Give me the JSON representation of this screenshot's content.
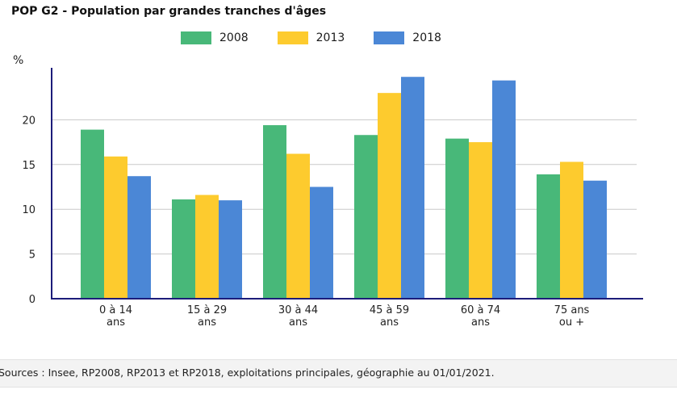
{
  "chart_data": {
    "type": "bar",
    "title": "POP G2 - Population par grandes tranches d'âges",
    "ylabel": "%",
    "xlabel": "",
    "categories": [
      [
        "0 à 14",
        "ans"
      ],
      [
        "15 à 29",
        "ans"
      ],
      [
        "30 à 44",
        "ans"
      ],
      [
        "45 à 59",
        "ans"
      ],
      [
        "60 à 74",
        "ans"
      ],
      [
        "75 ans",
        "ou +"
      ]
    ],
    "series": [
      {
        "name": "2008",
        "color": "#48b879",
        "values": [
          18.9,
          11.1,
          19.4,
          18.3,
          17.9,
          13.9
        ]
      },
      {
        "name": "2013",
        "color": "#fdcb2e",
        "values": [
          15.9,
          11.6,
          16.2,
          23.0,
          17.5,
          15.3
        ]
      },
      {
        "name": "2018",
        "color": "#4b87d6",
        "values": [
          13.7,
          11.0,
          12.5,
          24.8,
          24.4,
          13.2
        ]
      }
    ],
    "ylim": [
      0,
      26
    ],
    "yticks": [
      0,
      5,
      10,
      15,
      20
    ],
    "grid": true,
    "legend_position": "top"
  },
  "sources": "Sources : Insee, RP2008, RP2013 et RP2018, exploitations principales, géographie au 01/01/2021."
}
